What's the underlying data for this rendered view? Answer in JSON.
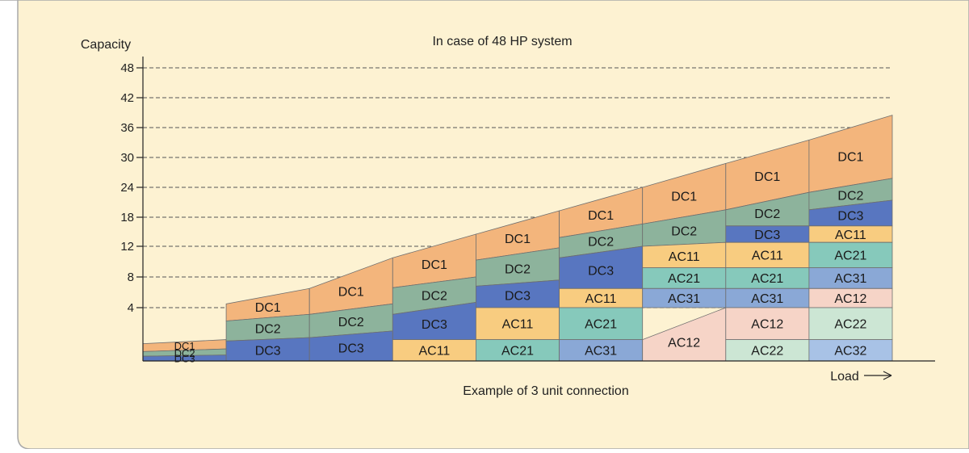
{
  "chart_data": {
    "type": "stacked-area-blocks",
    "title": "In case of 48 HP system",
    "caption": "Example of 3 unit connection",
    "ylabel": "Capacity",
    "xlabel": "Load",
    "y_ticks": [
      4,
      8,
      12,
      18,
      24,
      30,
      36,
      42,
      48
    ],
    "grid": "dashed horizontal",
    "colors": {
      "background": "#fdf2d2",
      "DC1": "#f3b57c",
      "DC2": "#8db39c",
      "DC3": "#5876c0",
      "AC11": "#f8cc80",
      "AC21": "#86c9bb",
      "AC31": "#8aa8d6",
      "AC12": "#f6d4c7",
      "AC22": "#cce6d4",
      "AC32": "#a8c2e6"
    },
    "columns": [
      {
        "top": 1.5,
        "segments": [
          {
            "label": "DC1",
            "lo_start": 0.7,
            "lo_end": 0.9,
            "hi_start": 1.3,
            "hi_end": 1.6
          },
          {
            "label": "DC2",
            "lo_start": 0.35,
            "lo_end": 0.45,
            "hi_start": 0.7,
            "hi_end": 0.9
          },
          {
            "label": "DC3",
            "lo_start": 0.0,
            "lo_end": 0.0,
            "hi_start": 0.35,
            "hi_end": 0.45
          }
        ]
      },
      {
        "top": 6,
        "segments": [
          {
            "label": "DC1",
            "lo_start": 3.0,
            "lo_end": 3.5,
            "hi_start": 4.5,
            "hi_end": 6.5
          },
          {
            "label": "DC2",
            "lo_start": 1.5,
            "lo_end": 1.75,
            "hi_start": 3.0,
            "hi_end": 3.5
          },
          {
            "label": "DC3",
            "lo_start": 0.0,
            "lo_end": 0.0,
            "hi_start": 1.5,
            "hi_end": 1.75
          }
        ]
      },
      {
        "top": 10,
        "segments": [
          {
            "label": "DC1",
            "lo_start": 3.5,
            "lo_end": 4.5,
            "hi_start": 6.5,
            "hi_end": 10.5
          },
          {
            "label": "DC2",
            "lo_start": 1.75,
            "lo_end": 2.25,
            "hi_start": 3.5,
            "hi_end": 4.5
          },
          {
            "label": "DC3",
            "lo_start": 0.0,
            "lo_end": 0.0,
            "hi_start": 1.75,
            "hi_end": 2.25
          }
        ]
      },
      {
        "top": 14,
        "segments": [
          {
            "label": "DC1",
            "lo_start": 6.6,
            "lo_end": 8.0,
            "hi_start": 10.5,
            "hi_end": 14.5
          },
          {
            "label": "DC2",
            "lo_start": 3.5,
            "lo_end": 4.7,
            "hi_start": 6.6,
            "hi_end": 8.0
          },
          {
            "label": "DC3",
            "lo_start": 1.6,
            "lo_end": 1.6,
            "hi_start": 3.5,
            "hi_end": 4.7
          },
          {
            "label": "AC11",
            "lo_start": 0.0,
            "lo_end": 0.0,
            "hi_start": 1.6,
            "hi_end": 1.6
          }
        ]
      },
      {
        "top": 19,
        "segments": [
          {
            "label": "DC1",
            "lo_start": 10.2,
            "lo_end": 11.8,
            "hi_start": 14.5,
            "hi_end": 19.3
          },
          {
            "label": "DC2",
            "lo_start": 6.8,
            "lo_end": 7.6,
            "hi_start": 10.2,
            "hi_end": 11.8
          },
          {
            "label": "DC3",
            "lo_start": 4.0,
            "lo_end": 4.0,
            "hi_start": 6.8,
            "hi_end": 7.6
          },
          {
            "label": "AC11",
            "lo_start": 1.6,
            "lo_end": 1.6,
            "hi_start": 4.0,
            "hi_end": 4.0
          },
          {
            "label": "AC21",
            "lo_start": 0.0,
            "lo_end": 0.0,
            "hi_start": 1.6,
            "hi_end": 1.6
          }
        ]
      },
      {
        "top": 24,
        "segments": [
          {
            "label": "DC1",
            "lo_start": 13.8,
            "lo_end": 16.6,
            "hi_start": 19.3,
            "hi_end": 24.0
          },
          {
            "label": "DC2",
            "lo_start": 10.5,
            "lo_end": 12.0,
            "hi_start": 13.8,
            "hi_end": 16.6
          },
          {
            "label": "DC3",
            "lo_start": 6.5,
            "lo_end": 6.5,
            "hi_start": 10.5,
            "hi_end": 12.0
          },
          {
            "label": "AC11",
            "lo_start": 4.0,
            "lo_end": 4.0,
            "hi_start": 6.5,
            "hi_end": 6.5
          },
          {
            "label": "AC21",
            "lo_start": 1.6,
            "lo_end": 1.6,
            "hi_start": 4.0,
            "hi_end": 4.0
          },
          {
            "label": "AC31",
            "lo_start": 0.0,
            "lo_end": 0.0,
            "hi_start": 1.6,
            "hi_end": 1.6
          }
        ]
      },
      {
        "top": 29,
        "segments": [
          {
            "label": "DC1",
            "lo_start": 16.6,
            "lo_end": 19.5,
            "hi_start": 24.0,
            "hi_end": 28.8
          },
          {
            "label": "DC2",
            "lo_start": 12.0,
            "lo_end": 12.8,
            "hi_start": 16.6,
            "hi_end": 19.5
          },
          {
            "label": "AC11",
            "lo_start": 9.2,
            "lo_end": 9.2,
            "hi_start": 12.0,
            "hi_end": 12.8
          },
          {
            "label": "AC21",
            "lo_start": 6.5,
            "lo_end": 6.5,
            "hi_start": 9.2,
            "hi_end": 9.2
          },
          {
            "label": "AC31",
            "lo_start": 4.0,
            "lo_end": 4.0,
            "hi_start": 6.5,
            "hi_end": 6.5
          },
          {
            "label": "AC12",
            "lo_start": 0.0,
            "lo_end": 0.0,
            "hi_start": 1.6,
            "hi_end": 4.0
          }
        ]
      },
      {
        "top": 34,
        "segments": [
          {
            "label": "DC1",
            "lo_start": 19.5,
            "lo_end": 23.0,
            "hi_start": 28.8,
            "hi_end": 33.5
          },
          {
            "label": "DC2",
            "lo_start": 16.2,
            "lo_end": 16.2,
            "hi_start": 19.5,
            "hi_end": 23.0
          },
          {
            "label": "DC3",
            "lo_start": 12.8,
            "lo_end": 12.8,
            "hi_start": 16.2,
            "hi_end": 16.2
          },
          {
            "label": "AC11",
            "lo_start": 9.2,
            "lo_end": 9.2,
            "hi_start": 12.8,
            "hi_end": 12.8
          },
          {
            "label": "AC21",
            "lo_start": 6.5,
            "lo_end": 6.5,
            "hi_start": 9.2,
            "hi_end": 9.2
          },
          {
            "label": "AC31",
            "lo_start": 4.0,
            "lo_end": 4.0,
            "hi_start": 6.5,
            "hi_end": 6.5
          },
          {
            "label": "AC12",
            "lo_start": 1.6,
            "lo_end": 1.6,
            "hi_start": 4.0,
            "hi_end": 4.0
          },
          {
            "label": "AC22",
            "lo_start": 0.0,
            "lo_end": 0.0,
            "hi_start": 1.6,
            "hi_end": 1.6
          }
        ]
      },
      {
        "top": 38,
        "segments": [
          {
            "label": "DC1",
            "lo_start": 23.0,
            "lo_end": 25.8,
            "hi_start": 33.5,
            "hi_end": 38.5
          },
          {
            "label": "DC2",
            "lo_start": 19.5,
            "lo_end": 21.4,
            "hi_start": 23.0,
            "hi_end": 25.8
          },
          {
            "label": "DC3",
            "lo_start": 16.2,
            "lo_end": 16.2,
            "hi_start": 19.5,
            "hi_end": 21.4
          },
          {
            "label": "AC11",
            "lo_start": 12.8,
            "lo_end": 12.8,
            "hi_start": 16.2,
            "hi_end": 16.2
          },
          {
            "label": "AC21",
            "lo_start": 9.2,
            "lo_end": 9.2,
            "hi_start": 12.8,
            "hi_end": 12.8
          },
          {
            "label": "AC31",
            "lo_start": 6.5,
            "lo_end": 6.5,
            "hi_start": 9.2,
            "hi_end": 9.2
          },
          {
            "label": "AC12",
            "lo_start": 4.0,
            "lo_end": 4.0,
            "hi_start": 6.5,
            "hi_end": 6.5
          },
          {
            "label": "AC22",
            "lo_start": 1.6,
            "lo_end": 1.6,
            "hi_start": 4.0,
            "hi_end": 4.0
          },
          {
            "label": "AC32",
            "lo_start": 0.0,
            "lo_end": 0.0,
            "hi_start": 1.6,
            "hi_end": 1.6
          }
        ]
      }
    ]
  }
}
